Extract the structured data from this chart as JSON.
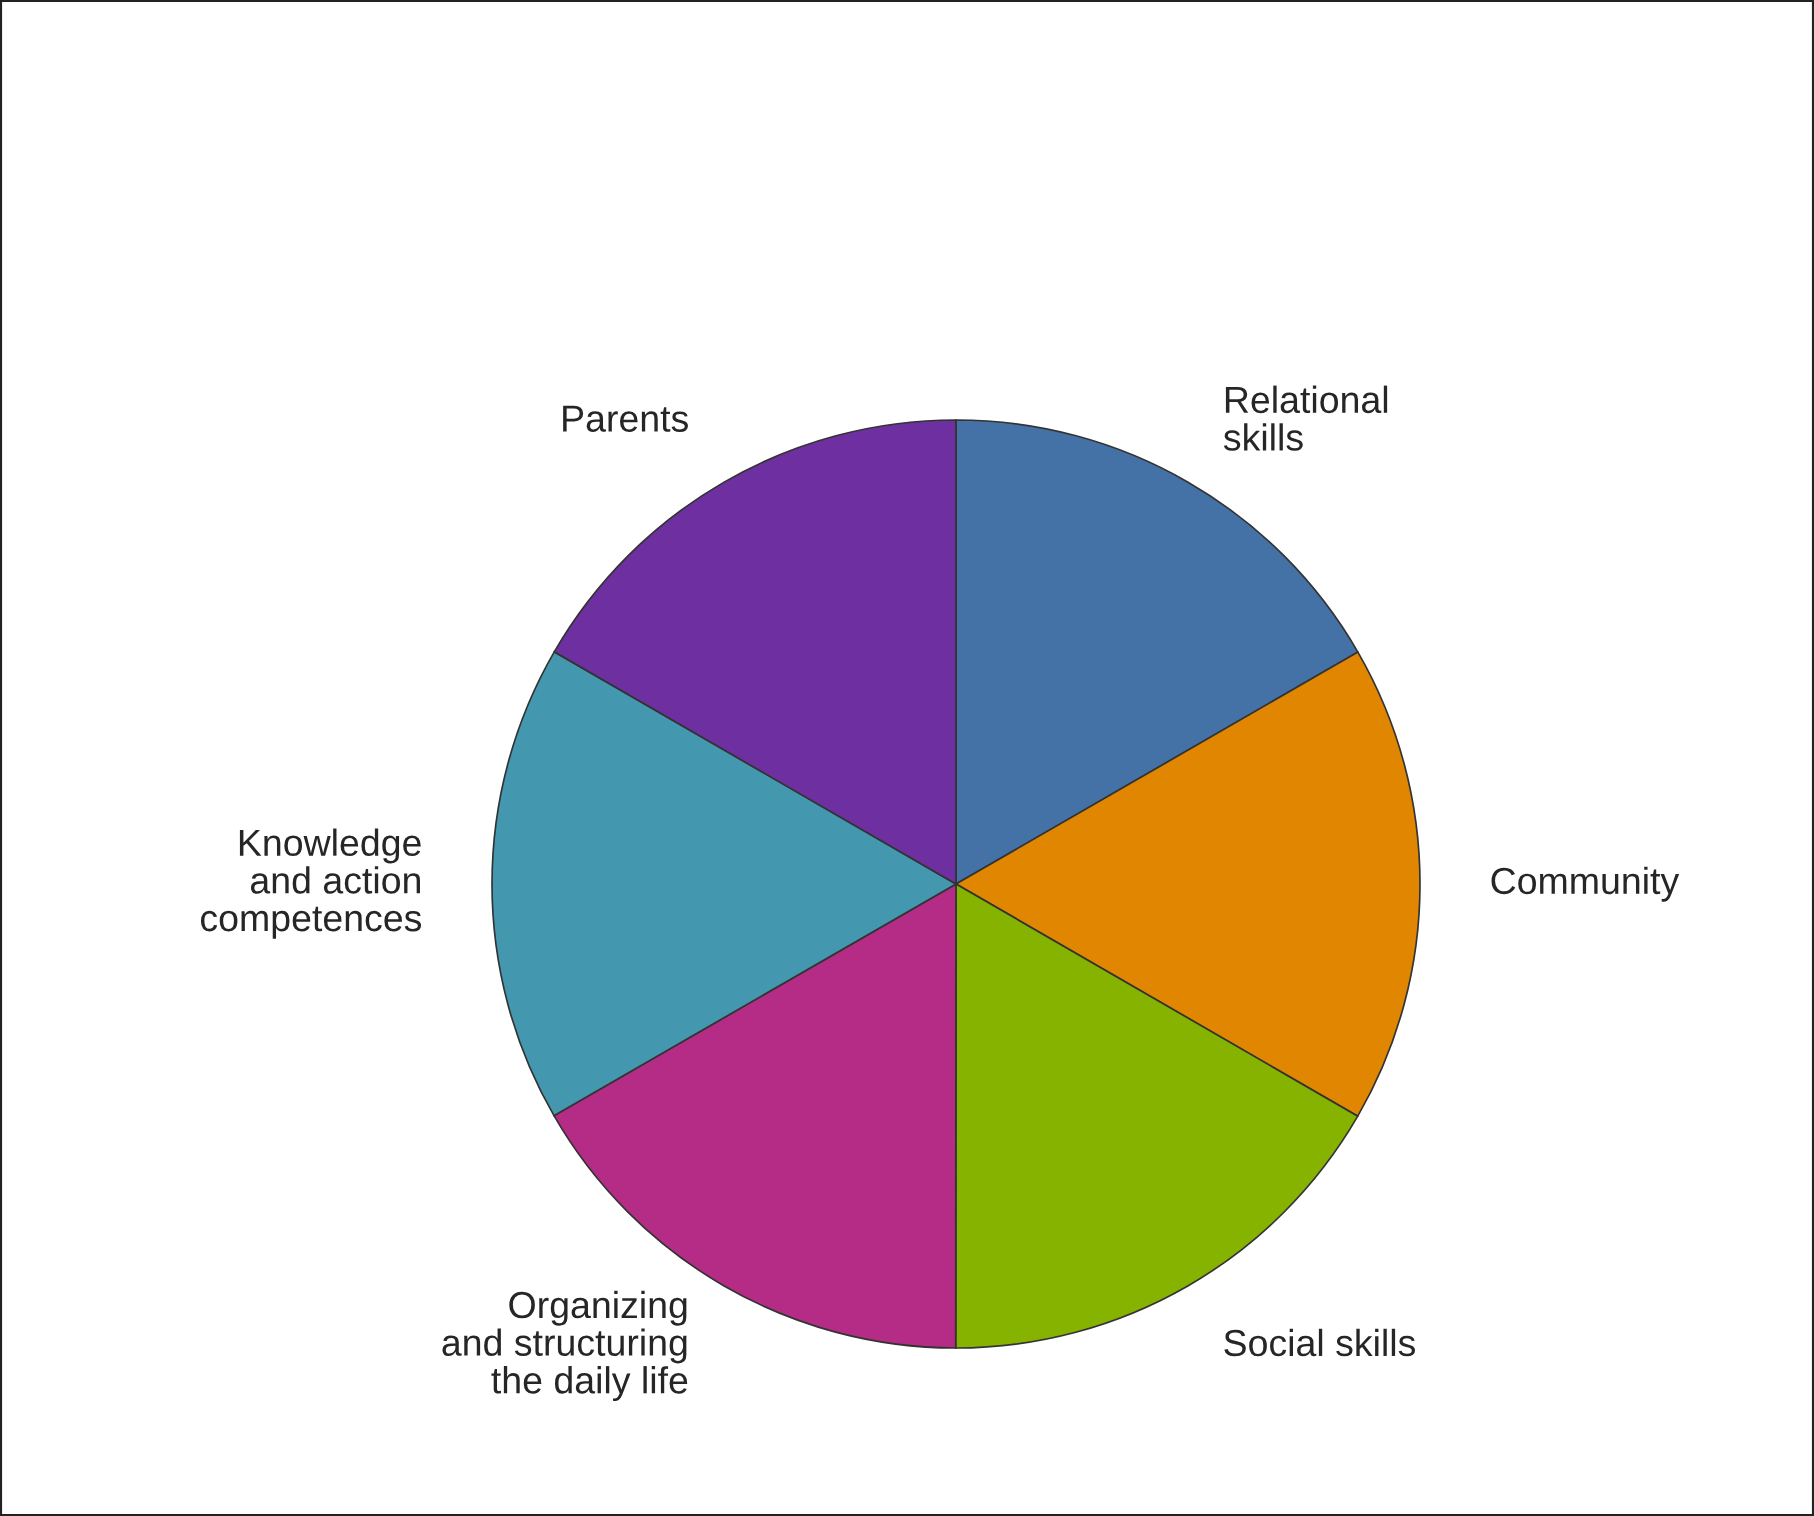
{
  "chart_data": {
    "type": "pie",
    "categories": [
      "Relational\nskills",
      "Community",
      "Social skills",
      "Organizing\nand structuring\nthe daily life",
      "Knowledge\nand action\ncompetences",
      "Parents"
    ],
    "values": [
      16.67,
      16.67,
      16.67,
      16.67,
      16.66,
      16.66
    ],
    "colors": [
      "#4472a6",
      "#e08600",
      "#86b300",
      "#b42c86",
      "#4398b0",
      "#6e30a0"
    ]
  }
}
